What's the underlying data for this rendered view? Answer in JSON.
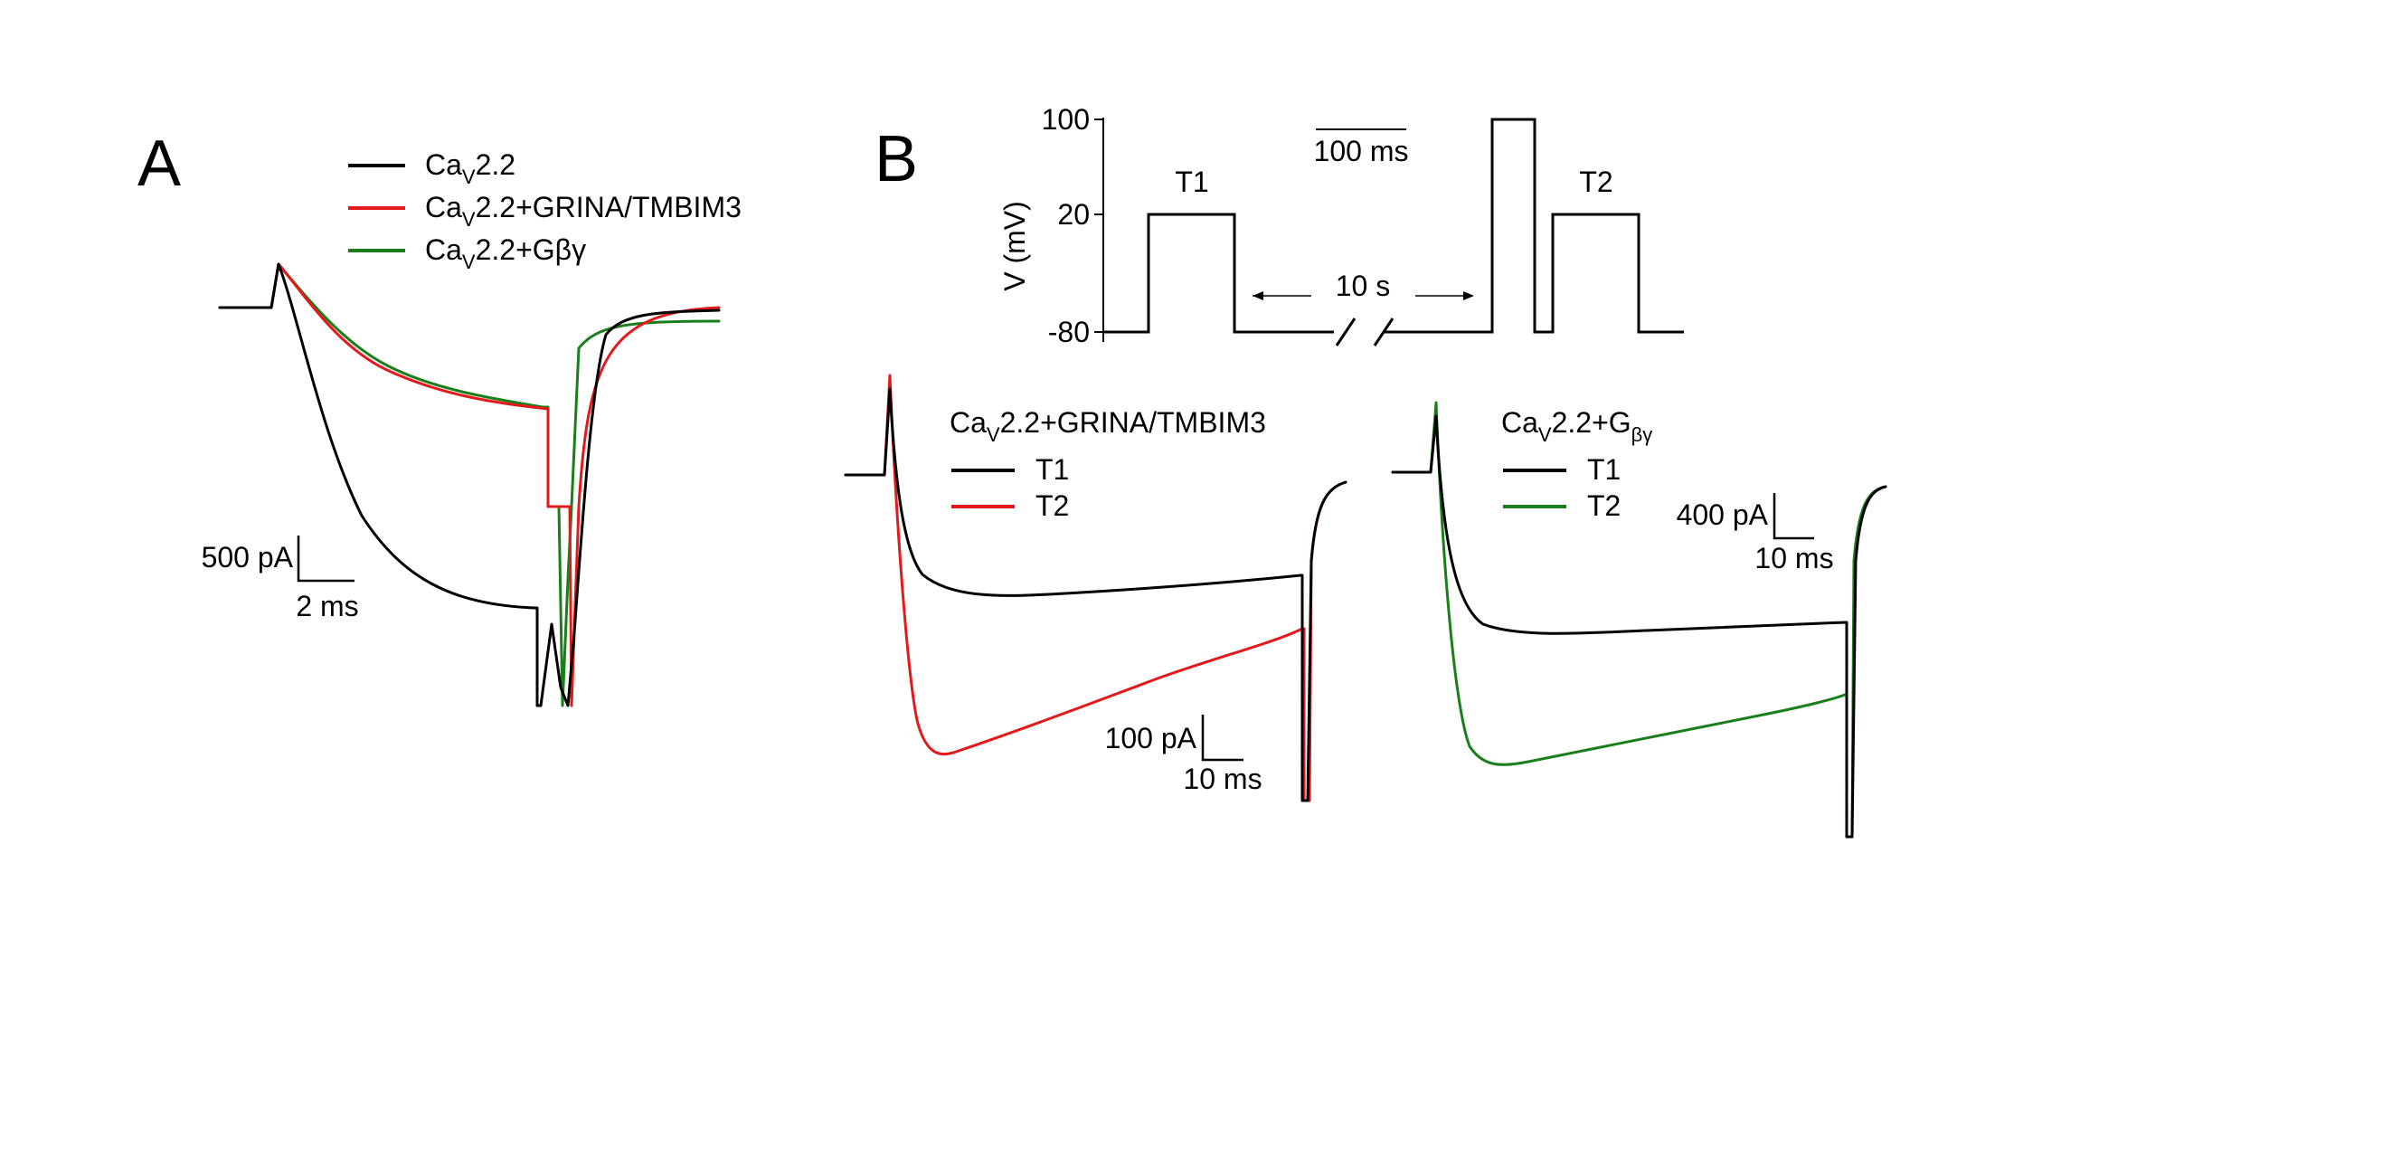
{
  "figure": {
    "panel_a": {
      "label": "A",
      "legend": [
        {
          "base": "Ca",
          "sub": "V",
          "rest": "2.2",
          "color": "#000000"
        },
        {
          "base": "Ca",
          "sub": "V",
          "rest": "2.2+GRINA/TMBIM3",
          "color": "#e31a1c"
        },
        {
          "base": "Ca",
          "sub": "V",
          "rest": "2.2+Gβγ",
          "color": "#1a7f1a"
        }
      ],
      "scale_current": "500 pA",
      "scale_time": "2 ms"
    },
    "panel_b": {
      "label": "B",
      "protocol": {
        "ylabel": "V (mV)",
        "ticks": [
          "100",
          "20",
          "-80"
        ],
        "time_scale": "100 ms",
        "interval": "10 s",
        "pulse1_label": "T1",
        "pulse2_label": "T2"
      },
      "left": {
        "title_base": "Ca",
        "title_sub": "V",
        "title_rest": "2.2+GRINA/TMBIM3",
        "legend": [
          {
            "label": "T1",
            "color": "#000000"
          },
          {
            "label": "T2",
            "color": "#e31a1c"
          }
        ],
        "scale_current": "100 pA",
        "scale_time": "10 ms"
      },
      "right": {
        "title_base": "Ca",
        "title_sub": "V",
        "title_rest": "2.2+G",
        "title_sub2": "βγ",
        "legend": [
          {
            "label": "T1",
            "color": "#000000"
          },
          {
            "label": "T2",
            "color": "#1a7f1a"
          }
        ],
        "scale_current": "400 pA",
        "scale_time": "10 ms"
      }
    }
  }
}
